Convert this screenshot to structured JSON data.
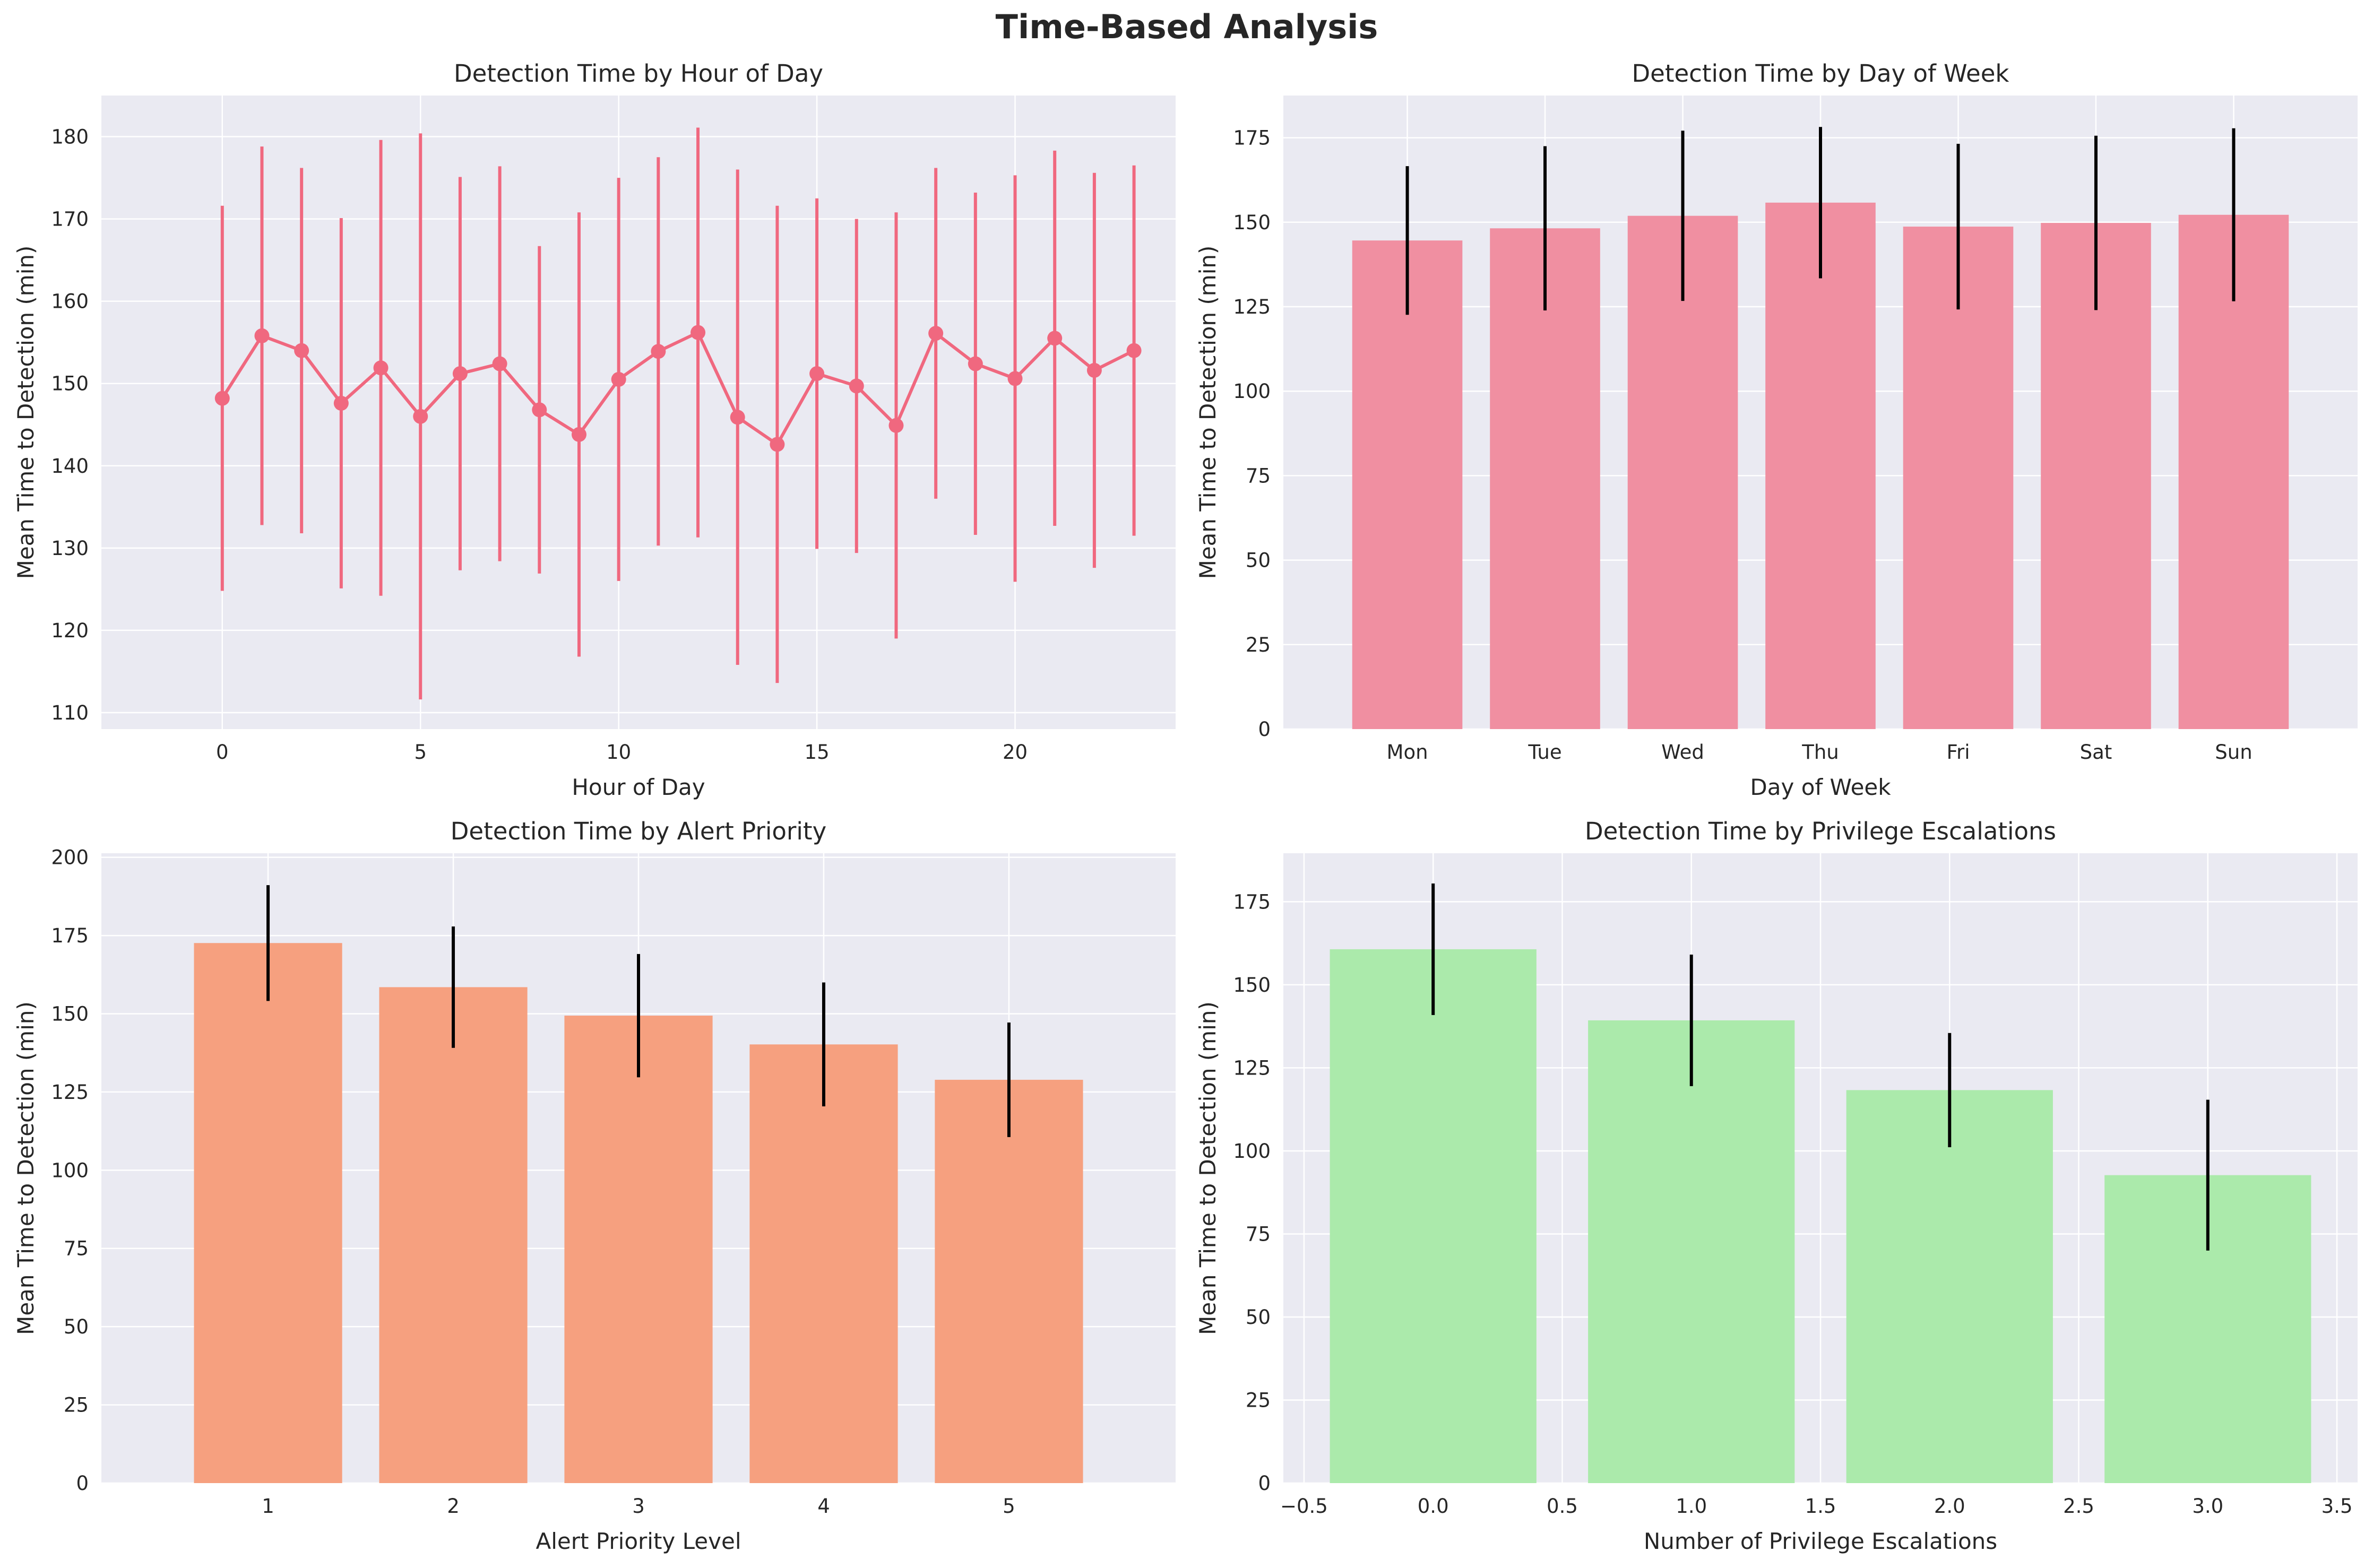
{
  "title": "Time-Based Analysis",
  "chart_data": [
    {
      "type": "line",
      "title": "Detection Time by Hour of Day",
      "xlabel": "Hour of Day",
      "ylabel": "Mean Time to Detection (min)",
      "color": "#f0687f",
      "x": [
        0,
        1,
        2,
        3,
        4,
        5,
        6,
        7,
        8,
        9,
        10,
        11,
        12,
        13,
        14,
        15,
        16,
        17,
        18,
        19,
        20,
        21,
        22,
        23
      ],
      "values": [
        148.2,
        155.8,
        154.0,
        147.6,
        151.9,
        146.0,
        151.2,
        152.4,
        146.8,
        143.8,
        150.5,
        153.9,
        156.2,
        145.9,
        142.6,
        151.2,
        149.7,
        144.9,
        156.1,
        152.4,
        150.6,
        155.5,
        151.6,
        154.0
      ],
      "errors": [
        23.4,
        23.0,
        22.2,
        22.5,
        27.7,
        34.4,
        23.9,
        24.0,
        19.9,
        27.0,
        24.5,
        23.6,
        24.9,
        30.1,
        29.0,
        21.3,
        20.3,
        25.9,
        20.1,
        20.8,
        24.7,
        22.8,
        24.0,
        22.5
      ],
      "xlim": [
        -3.05,
        24.05
      ],
      "ylim": [
        108,
        185
      ],
      "xticks": [
        0,
        5,
        10,
        15,
        20
      ],
      "yticks": [
        110,
        120,
        130,
        140,
        150,
        160,
        170,
        180
      ],
      "grid": true
    },
    {
      "type": "bar",
      "title": "Detection Time by Day of Week",
      "xlabel": "Day of Week",
      "ylabel": "Mean Time to Detection (min)",
      "color": "#f08fa1",
      "categories": [
        "Mon",
        "Tue",
        "Wed",
        "Thu",
        "Fri",
        "Sat",
        "Sun"
      ],
      "values": [
        144.6,
        148.2,
        151.9,
        155.8,
        148.7,
        149.8,
        152.2
      ],
      "errors": [
        22.0,
        24.3,
        25.2,
        22.4,
        24.5,
        25.8,
        25.6
      ],
      "ylim": [
        0,
        187.5
      ],
      "yticks": [
        0,
        25,
        50,
        75,
        100,
        125,
        150,
        175
      ],
      "grid": true
    },
    {
      "type": "bar",
      "title": "Detection Time by Alert Priority",
      "xlabel": "Alert Priority Level",
      "ylabel": "Mean Time to Detection (min)",
      "color": "#f6a07f",
      "categories": [
        "1",
        "2",
        "3",
        "4",
        "5"
      ],
      "values": [
        172.6,
        158.5,
        149.4,
        140.2,
        128.9
      ],
      "errors": [
        18.5,
        19.4,
        19.7,
        19.8,
        18.3
      ],
      "ylim": [
        0,
        201.3
      ],
      "yticks": [
        0,
        25,
        50,
        75,
        100,
        125,
        150,
        175,
        200
      ],
      "grid": true
    },
    {
      "type": "bar",
      "title": "Detection Time by Privilege Escalations",
      "xlabel": "Number of Privilege Escalations",
      "ylabel": "Mean Time to Detection (min)",
      "color": "#abeaab",
      "x": [
        0.0,
        1.0,
        2.0,
        3.0
      ],
      "values": [
        160.7,
        139.3,
        118.3,
        92.7
      ],
      "errors": [
        19.8,
        19.8,
        17.2,
        22.7
      ],
      "xlim": [
        -0.58,
        3.58
      ],
      "ylim": [
        0,
        189.6
      ],
      "xticks": [
        -0.5,
        0.0,
        0.5,
        1.0,
        1.5,
        2.0,
        2.5,
        3.0,
        3.5
      ],
      "yticks": [
        0,
        25,
        50,
        75,
        100,
        125,
        150,
        175
      ],
      "grid": true
    }
  ]
}
